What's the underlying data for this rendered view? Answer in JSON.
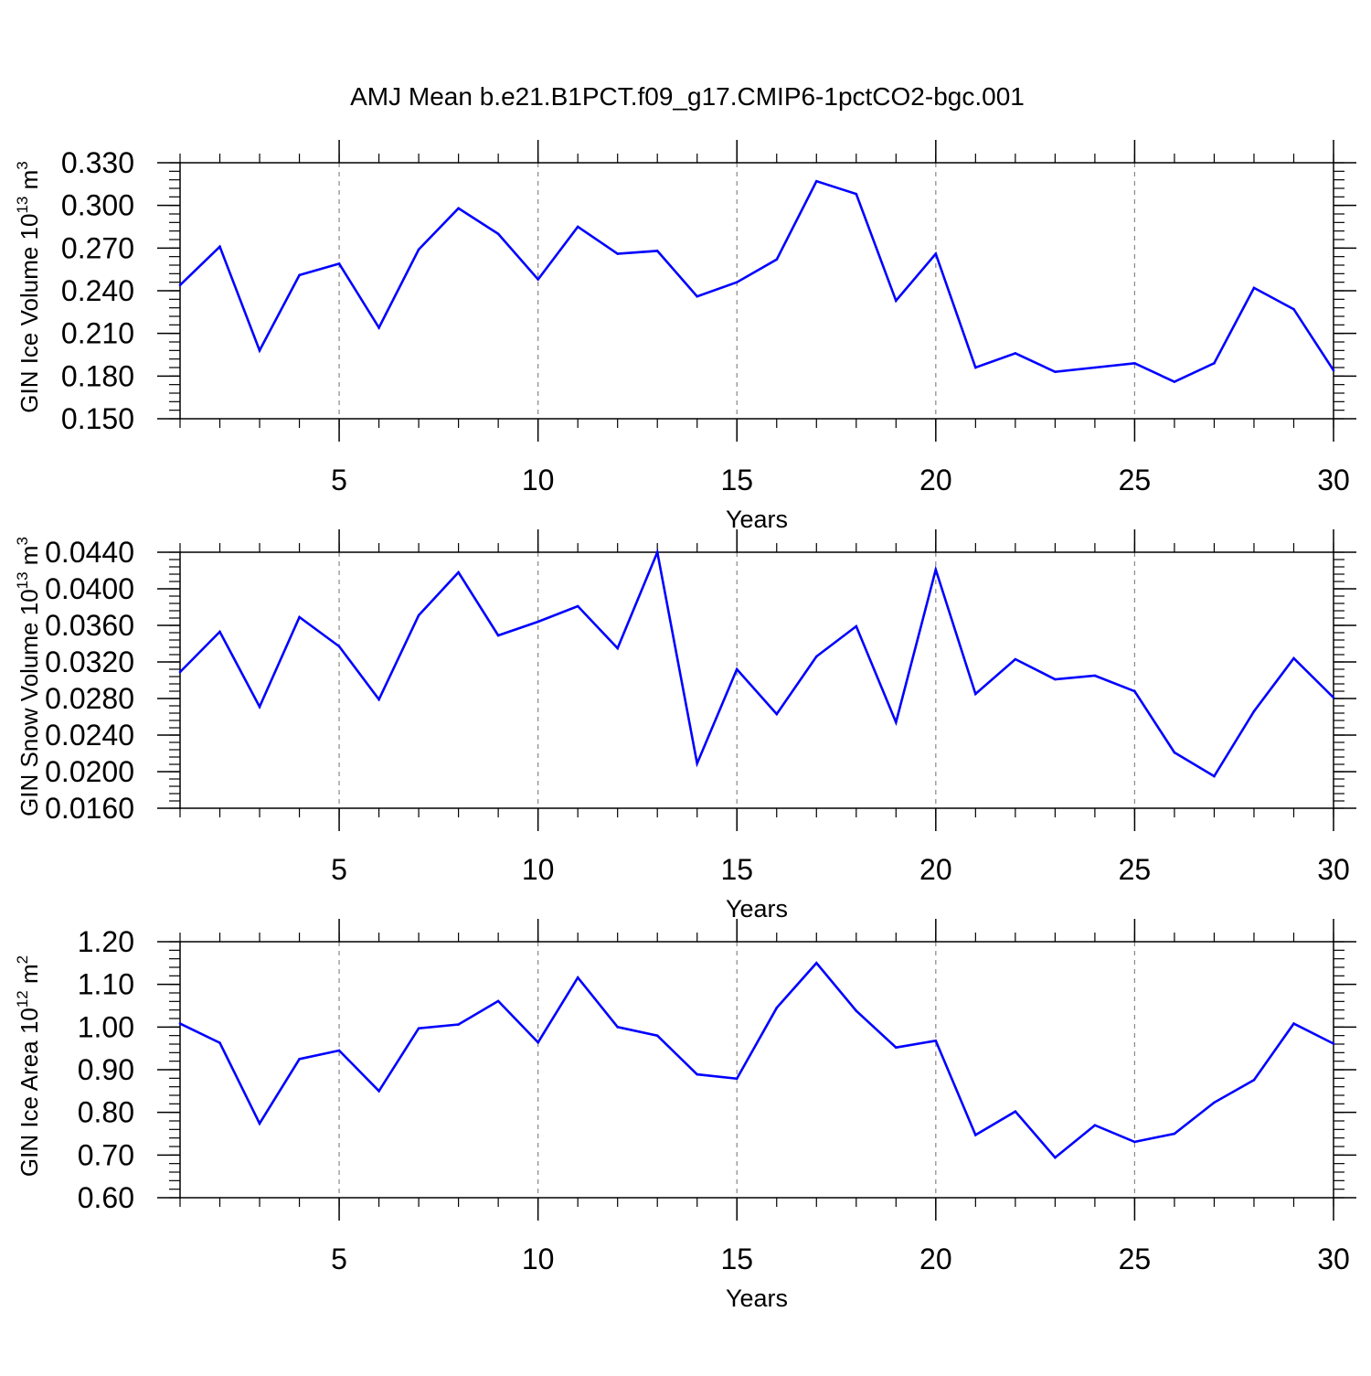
{
  "figure_title": "AMJ Mean b.e21.B1PCT.f09_g17.CMIP6-1pctCO2-bgc.001",
  "colors": {
    "line": "#0000ff",
    "axis": "#000000",
    "grid": "#888888"
  },
  "chart_data": [
    {
      "type": "line",
      "ylabel_main": "GIN Ice Volume 10",
      "ylabel_exp": "13",
      "ylabel_unit": " m",
      "ylabel_unit_exp": "3",
      "xlabel": "Years",
      "xlim": [
        1,
        30
      ],
      "ylim": [
        0.15,
        0.33
      ],
      "xticks": [
        5,
        10,
        15,
        20,
        25,
        30
      ],
      "xtick_labels": [
        "5",
        "10",
        "15",
        "20",
        "25",
        "30"
      ],
      "yticks": [
        0.15,
        0.18,
        0.21,
        0.24,
        0.27,
        0.3,
        0.33
      ],
      "ytick_labels": [
        "0.150",
        "0.180",
        "0.210",
        "0.240",
        "0.270",
        "0.300",
        "0.330"
      ],
      "x": [
        1,
        2,
        3,
        4,
        5,
        6,
        7,
        8,
        9,
        10,
        11,
        12,
        13,
        14,
        15,
        16,
        17,
        18,
        19,
        20,
        21,
        22,
        23,
        24,
        25,
        26,
        27,
        28,
        29,
        30
      ],
      "values": [
        0.244,
        0.271,
        0.198,
        0.251,
        0.259,
        0.214,
        0.269,
        0.298,
        0.28,
        0.248,
        0.285,
        0.266,
        0.268,
        0.236,
        0.246,
        0.262,
        0.317,
        0.308,
        0.233,
        0.266,
        0.186,
        0.196,
        0.183,
        0.186,
        0.189,
        0.176,
        0.189,
        0.242,
        0.227,
        0.184
      ]
    },
    {
      "type": "line",
      "ylabel_main": "GIN Snow Volume 10",
      "ylabel_exp": "13",
      "ylabel_unit": " m",
      "ylabel_unit_exp": "3",
      "xlabel": "Years",
      "xlim": [
        1,
        30
      ],
      "ylim": [
        0.016,
        0.044
      ],
      "xticks": [
        5,
        10,
        15,
        20,
        25,
        30
      ],
      "xtick_labels": [
        "5",
        "10",
        "15",
        "20",
        "25",
        "30"
      ],
      "yticks": [
        0.016,
        0.02,
        0.024,
        0.028,
        0.032,
        0.036,
        0.04,
        0.044
      ],
      "ytick_labels": [
        "0.0160",
        "0.0200",
        "0.0240",
        "0.0280",
        "0.0320",
        "0.0360",
        "0.0400",
        "0.0440"
      ],
      "x": [
        1,
        2,
        3,
        4,
        5,
        6,
        7,
        8,
        9,
        10,
        11,
        12,
        13,
        14,
        15,
        16,
        17,
        18,
        19,
        20,
        21,
        22,
        23,
        24,
        25,
        26,
        27,
        28,
        29,
        30
      ],
      "values": [
        0.0309,
        0.0353,
        0.0271,
        0.0369,
        0.0337,
        0.0279,
        0.0371,
        0.0418,
        0.0349,
        0.0364,
        0.0381,
        0.0335,
        0.044,
        0.0209,
        0.0312,
        0.0263,
        0.0326,
        0.0359,
        0.0254,
        0.0421,
        0.0285,
        0.0323,
        0.0301,
        0.0305,
        0.0288,
        0.0221,
        0.0195,
        0.0266,
        0.0324,
        0.0281
      ]
    },
    {
      "type": "line",
      "ylabel_main": "GIN Ice Area 10",
      "ylabel_exp": "12",
      "ylabel_unit": " m",
      "ylabel_unit_exp": "2",
      "xlabel": "Years",
      "xlim": [
        1,
        30
      ],
      "ylim": [
        0.6,
        1.2
      ],
      "xticks": [
        5,
        10,
        15,
        20,
        25,
        30
      ],
      "xtick_labels": [
        "5",
        "10",
        "15",
        "20",
        "25",
        "30"
      ],
      "yticks": [
        0.6,
        0.7,
        0.8,
        0.9,
        1.0,
        1.1,
        1.2
      ],
      "ytick_labels": [
        "0.60",
        "0.70",
        "0.80",
        "0.90",
        "1.00",
        "1.10",
        "1.20"
      ],
      "x": [
        1,
        2,
        3,
        4,
        5,
        6,
        7,
        8,
        9,
        10,
        11,
        12,
        13,
        14,
        15,
        16,
        17,
        18,
        19,
        20,
        21,
        22,
        23,
        24,
        25,
        26,
        27,
        28,
        29,
        30
      ],
      "values": [
        1.008,
        0.963,
        0.774,
        0.925,
        0.945,
        0.85,
        0.997,
        1.006,
        1.061,
        0.964,
        1.116,
        1.0,
        0.98,
        0.889,
        0.879,
        1.045,
        1.15,
        1.038,
        0.952,
        0.968,
        0.747,
        0.802,
        0.694,
        0.77,
        0.731,
        0.75,
        0.823,
        0.876,
        1.008,
        0.961
      ]
    }
  ]
}
